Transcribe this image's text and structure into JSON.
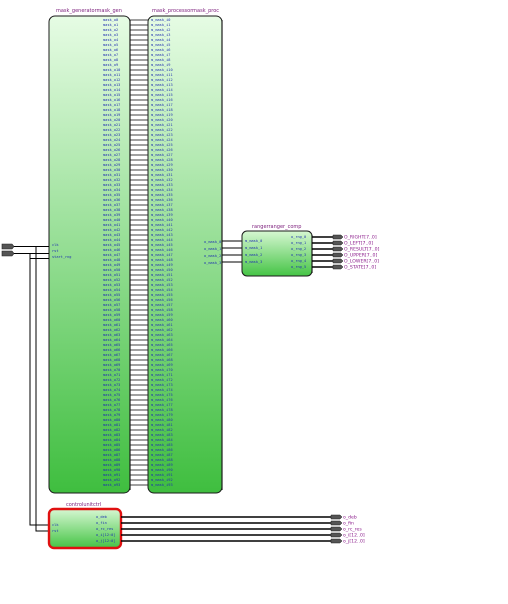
{
  "colors": {
    "block_gradient_top": "#e4fbe2",
    "block_gradient_bottom": "#3fbe3f",
    "block_border": "#1a1a1a",
    "selected_border": "#e01010",
    "wire": "#000000",
    "instance_label": "#7a1a7a",
    "pin_label": "#1f2fb0",
    "port_fill": "#555555"
  },
  "blocks": {
    "mask_gen": {
      "title": "mask_generatormask_gen"
    },
    "mask_proc": {
      "title": "mask_processormask_proc"
    },
    "ranger": {
      "title": "rangerranger_comp",
      "in_pins": [
        "m_mask_0",
        "m_mask_1",
        "m_mask_2",
        "m_mask_3"
      ],
      "out_pins": [
        "o_rng_0",
        "o_rng_1",
        "o_rng_2",
        "o_rng_3",
        "o_rng_4",
        "o_rng_5"
      ]
    },
    "control": {
      "title": "controlunitctrl",
      "in_pins": [
        "clk",
        "rst"
      ],
      "out_pins": [
        "o_deb",
        "o_fin",
        "o_rc_res",
        "o_i[12:0]",
        "o_j[12:0]"
      ]
    }
  },
  "mask_gen_pins": {
    "left": [
      "clk",
      "rst",
      "start_rng"
    ],
    "bus_prefix": "mask_o"
  },
  "mask_proc_pins": {
    "bus_prefix": "m_mask_i",
    "out": [
      "o_mask_0",
      "o_mask_1",
      "o_mask_2",
      "o_mask_3"
    ]
  },
  "ranger_outputs": [
    "O_RIGHT[7..0]",
    "O_LEFT[7..0]",
    "O_RESULT[7..0]",
    "O_UPPER[7..0]",
    "O_LOWER[7..0]",
    "O_STATE[7..0]"
  ],
  "control_outputs": [
    "o_deb",
    "o_fin",
    "o_rc_res",
    "o_i[12..0]",
    "o_j[12..0]"
  ],
  "top_inputs": [
    "clk",
    "rst"
  ]
}
